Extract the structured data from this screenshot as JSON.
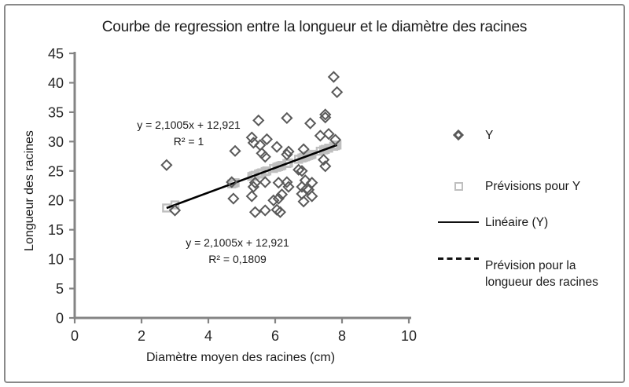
{
  "chart": {
    "title": "Courbe de regression entre la longueur et le diamètre des racines",
    "xlabel": "Diamètre moyen des racines (cm)",
    "ylabel": "Longueur des racines"
  },
  "annotations": [
    {
      "equation": "y = 2,1005x + 12,921",
      "r2": "R² = 1"
    },
    {
      "equation": "y = 2,1005x + 12,921",
      "r2": "R² = 0,1809"
    }
  ],
  "legend": [
    {
      "label": "Y",
      "marker": "diamond"
    },
    {
      "label": "Prévisions pour Y",
      "marker": "square"
    },
    {
      "label": "Linéaire (Y)",
      "marker": "solid-line"
    },
    {
      "label": "Prévision pour la longueur des racines",
      "label_line1": "Prévision pour la",
      "label_line2": "longueur des racines",
      "marker": "dashed-line"
    }
  ],
  "colors": {
    "diamond": "#595959",
    "square": "#bfbfbf",
    "trendline": "#000000",
    "axis": "#848484",
    "text": "#262626",
    "frame_border": "#898989"
  },
  "chart_data": {
    "type": "scatter",
    "title": "Courbe de regression entre la longueur et le diamètre des racines",
    "xlabel": "Diamètre moyen des racines (cm)",
    "ylabel": "Longueur des racines",
    "xlim": [
      0,
      10
    ],
    "ylim": [
      0,
      45
    ],
    "x_ticks": [
      0,
      2,
      4,
      6,
      8,
      10
    ],
    "y_ticks": [
      0,
      5,
      10,
      15,
      20,
      25,
      30,
      35,
      40,
      45
    ],
    "grid": false,
    "legend_position": "right",
    "regression": {
      "slope": 2.1005,
      "intercept": 12.921,
      "equation": "y = 2,1005x + 12,921",
      "r2": "0,1809"
    },
    "series": [
      {
        "name": "Y",
        "marker": "diamond",
        "color": "#595959",
        "points": [
          [
            2.75,
            26
          ],
          [
            3,
            18.3
          ],
          [
            4.7,
            23.1
          ],
          [
            4.75,
            20.3
          ],
          [
            4.8,
            28.4
          ],
          [
            5.3,
            30.7
          ],
          [
            5.3,
            20.7
          ],
          [
            5.35,
            29.8
          ],
          [
            5.35,
            22.3
          ],
          [
            5.4,
            23
          ],
          [
            5.4,
            18
          ],
          [
            5.5,
            33.6
          ],
          [
            5.55,
            29.4
          ],
          [
            5.6,
            28
          ],
          [
            5.7,
            27.4
          ],
          [
            5.7,
            23.1
          ],
          [
            5.7,
            18.3
          ],
          [
            5.75,
            30.4
          ],
          [
            5.95,
            20
          ],
          [
            6.05,
            29.1
          ],
          [
            6.05,
            18.4
          ],
          [
            6.1,
            23
          ],
          [
            6.1,
            20.3
          ],
          [
            6.15,
            18
          ],
          [
            6.2,
            21
          ],
          [
            6.35,
            34
          ],
          [
            6.35,
            27.8
          ],
          [
            6.35,
            23.1
          ],
          [
            6.4,
            28.3
          ],
          [
            6.4,
            22.3
          ],
          [
            6.7,
            25.2
          ],
          [
            6.8,
            25
          ],
          [
            6.8,
            22.3
          ],
          [
            6.8,
            21.1
          ],
          [
            6.85,
            28.7
          ],
          [
            6.85,
            19.8
          ],
          [
            6.9,
            23.4
          ],
          [
            6.95,
            22
          ],
          [
            7,
            21.8
          ],
          [
            7.05,
            33.1
          ],
          [
            7.1,
            23
          ],
          [
            7.1,
            20.7
          ],
          [
            7.35,
            31
          ],
          [
            7.45,
            26.9
          ],
          [
            7.5,
            34.6
          ],
          [
            7.5,
            34.1
          ],
          [
            7.5,
            25.8
          ],
          [
            7.6,
            31.3
          ],
          [
            7.75,
            41
          ],
          [
            7.8,
            30.3
          ],
          [
            7.85,
            38.4
          ]
        ]
      },
      {
        "name": "Prévisions pour Y",
        "marker": "square",
        "color": "#bfbfbf",
        "points": [
          [
            2.75,
            18.7
          ],
          [
            3,
            19.22
          ],
          [
            4.7,
            22.79
          ],
          [
            4.75,
            22.9
          ],
          [
            4.8,
            23.0
          ],
          [
            5.3,
            24.05
          ],
          [
            5.35,
            24.16
          ],
          [
            5.4,
            24.26
          ],
          [
            5.5,
            24.47
          ],
          [
            5.55,
            24.58
          ],
          [
            5.6,
            24.68
          ],
          [
            5.7,
            24.89
          ],
          [
            5.75,
            25.0
          ],
          [
            5.95,
            25.42
          ],
          [
            6.05,
            25.63
          ],
          [
            6.1,
            25.73
          ],
          [
            6.15,
            25.84
          ],
          [
            6.2,
            25.94
          ],
          [
            6.35,
            26.26
          ],
          [
            6.4,
            26.36
          ],
          [
            6.7,
            26.99
          ],
          [
            6.8,
            27.2
          ],
          [
            6.85,
            27.31
          ],
          [
            6.9,
            27.41
          ],
          [
            6.95,
            27.52
          ],
          [
            7,
            27.62
          ],
          [
            7.05,
            27.73
          ],
          [
            7.1,
            27.83
          ],
          [
            7.35,
            28.36
          ],
          [
            7.45,
            28.57
          ],
          [
            7.5,
            28.67
          ],
          [
            7.6,
            28.88
          ],
          [
            7.75,
            29.2
          ],
          [
            7.8,
            29.3
          ],
          [
            7.85,
            29.41
          ]
        ]
      }
    ],
    "trendline": {
      "name": "Linéaire (Y)",
      "type": "linear",
      "color": "#000000",
      "x_start": 2.75,
      "x_end": 7.85
    }
  }
}
